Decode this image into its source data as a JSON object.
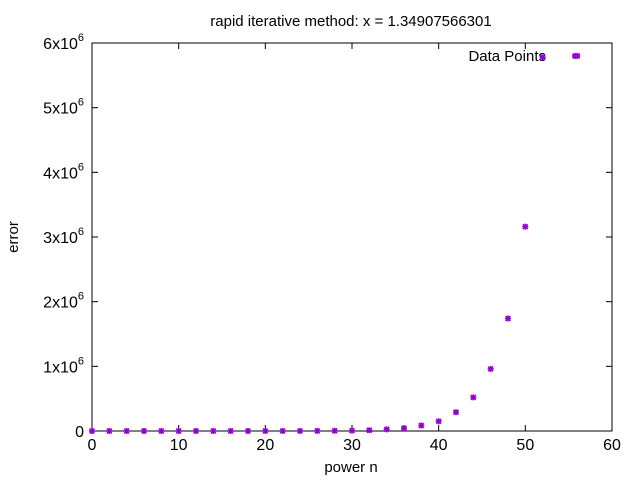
{
  "chart_data": {
    "type": "scatter",
    "title": "rapid iterative method: x = 1.34907566301",
    "xlabel": "power n",
    "ylabel": "error",
    "xlim": [
      0,
      60
    ],
    "ylim": [
      0,
      6000000
    ],
    "xticks": [
      0,
      10,
      20,
      30,
      40,
      50,
      60
    ],
    "yticks": [
      {
        "value": 0,
        "mantissa": "0",
        "exponent": ""
      },
      {
        "value": 1000000,
        "mantissa": "1x10",
        "exponent": "6"
      },
      {
        "value": 2000000,
        "mantissa": "2x10",
        "exponent": "6"
      },
      {
        "value": 3000000,
        "mantissa": "3x10",
        "exponent": "6"
      },
      {
        "value": 4000000,
        "mantissa": "4x10",
        "exponent": "6"
      },
      {
        "value": 5000000,
        "mantissa": "5x10",
        "exponent": "6"
      },
      {
        "value": 6000000,
        "mantissa": "6x10",
        "exponent": "6"
      }
    ],
    "grid": false,
    "legend_position": "top-right",
    "series": [
      {
        "name": "Data Points",
        "color": "#9400d3",
        "marker": "star",
        "x": [
          0,
          2,
          4,
          6,
          8,
          10,
          12,
          14,
          16,
          18,
          20,
          22,
          24,
          26,
          28,
          30,
          32,
          34,
          36,
          38,
          40,
          42,
          44,
          46,
          48,
          50,
          52,
          56
        ],
        "y": [
          0,
          0,
          0,
          0,
          0,
          0,
          0,
          0,
          0,
          0,
          500,
          800,
          1200,
          2000,
          3500,
          6000,
          12000,
          25000,
          45000,
          85000,
          150000,
          290000,
          520000,
          960000,
          1740000,
          3160000,
          5780000,
          5800000
        ]
      }
    ]
  }
}
